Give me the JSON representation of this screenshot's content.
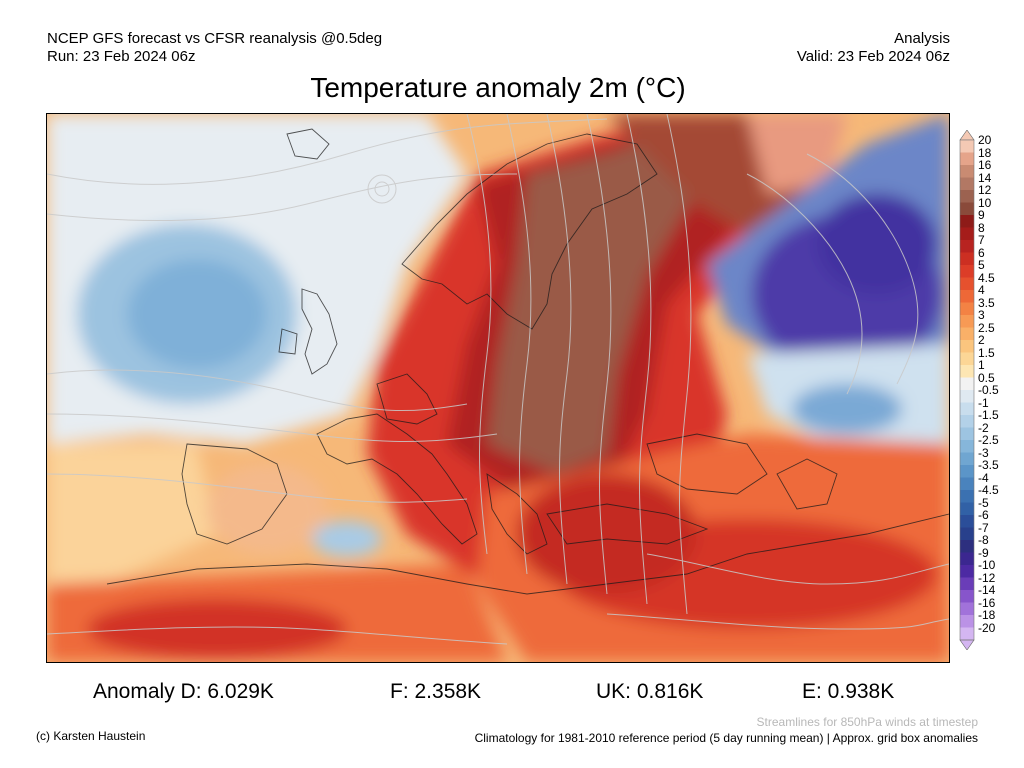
{
  "header": {
    "left_line1": "NCEP GFS forecast vs CFSR reanalysis @0.5deg",
    "left_line2": "Run: 23 Feb 2024 06z",
    "right_line1": "Analysis",
    "right_line2": "Valid: 23 Feb 2024 06z"
  },
  "title": "Temperature anomaly 2m (°C)",
  "legend": {
    "levels": [
      "20",
      "18",
      "16",
      "14",
      "12",
      "10",
      "9",
      "8",
      "7",
      "6",
      "5",
      "4.5",
      "4",
      "3.5",
      "3",
      "2.5",
      "2",
      "1.5",
      "1",
      "0.5",
      "-0.5",
      "-1",
      "-1.5",
      "-2",
      "-2.5",
      "-3",
      "-3.5",
      "-4",
      "-4.5",
      "-5",
      "-6",
      "-7",
      "-8",
      "-9",
      "-10",
      "-12",
      "-14",
      "-16",
      "-18",
      "-20"
    ],
    "colors": [
      "#f4c9b4",
      "#e5a48a",
      "#c98b72",
      "#b27864",
      "#9c6250",
      "#8a4a3a",
      "#8e1b18",
      "#a51c1a",
      "#b82320",
      "#cc2f22",
      "#dc3d28",
      "#e6512e",
      "#ee6837",
      "#f38244",
      "#f79a55",
      "#f9b068",
      "#fbc57e",
      "#fcd696",
      "#fde6b3",
      "#f2f2f2",
      "#dfe9f1",
      "#c8dded",
      "#b3d1e8",
      "#9dc4e1",
      "#86b6da",
      "#70a6d1",
      "#5b95c8",
      "#4a83bd",
      "#3b71b1",
      "#3161a6",
      "#2b4e99",
      "#28408c",
      "#2d2f7f",
      "#3b2790",
      "#4d2aa3",
      "#6a3db8",
      "#8755cb",
      "#a172da",
      "#bb92e6",
      "#d4b6f1"
    ]
  },
  "stats": {
    "D": "Anomaly D: 6.029K",
    "F": "F: 2.358K",
    "UK": "UK: 0.816K",
    "E": "E: 0.938K"
  },
  "footer": {
    "credit": "(c) Karsten Haustein",
    "streamline_note": "Streamlines for 850hPa winds at timestep",
    "climatology_note": "Climatology for 1981-2010 reference period (5 day running mean) | Approx. grid box anomalies"
  }
}
